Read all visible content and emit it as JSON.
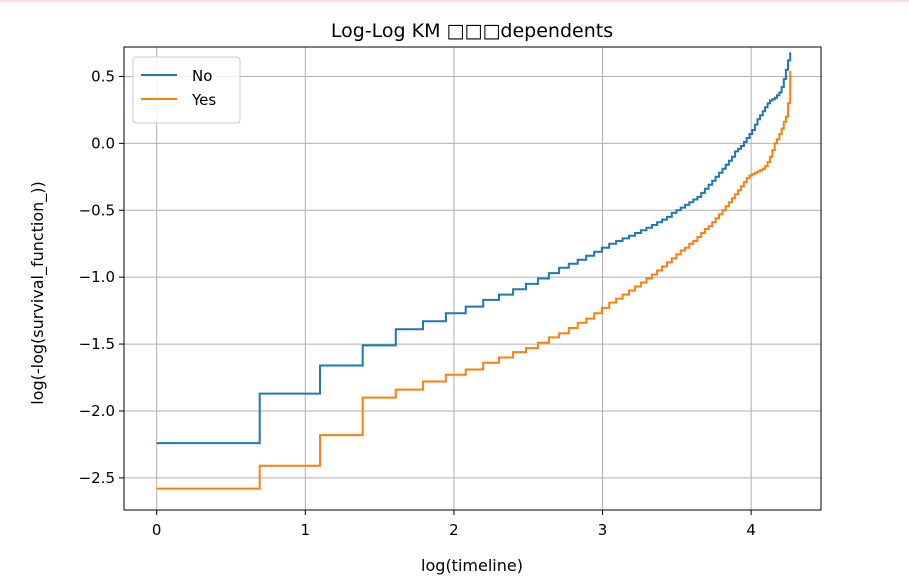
{
  "chart_data": {
    "type": "line",
    "title": "Log-Log KM □□□dependents",
    "xlabel": "log(timeline)",
    "ylabel": "log(-log(survival_function_))",
    "xlim": [
      -0.22,
      4.47
    ],
    "ylim": [
      -2.74,
      0.72
    ],
    "xticks": [
      0,
      1,
      2,
      3,
      4
    ],
    "xtick_labels": [
      "0",
      "1",
      "2",
      "3",
      "4"
    ],
    "yticks": [
      -2.5,
      -2.0,
      -1.5,
      -1.0,
      -0.5,
      0.0,
      0.5
    ],
    "ytick_labels": [
      "−2.5",
      "−2.0",
      "−1.5",
      "−1.0",
      "−0.5",
      "0.0",
      "0.5"
    ],
    "grid": true,
    "legend_position": "top-left",
    "series": [
      {
        "name": "No",
        "color": "#1f77b4",
        "step": "post",
        "x": [
          0.0,
          0.693,
          1.099,
          1.386,
          1.609,
          1.792,
          1.946,
          2.079,
          2.197,
          2.303,
          2.398,
          2.485,
          2.565,
          2.639,
          2.708,
          2.773,
          2.833,
          2.89,
          2.944,
          2.996,
          3.045,
          3.091,
          3.135,
          3.178,
          3.219,
          3.258,
          3.296,
          3.332,
          3.367,
          3.401,
          3.434,
          3.466,
          3.497,
          3.526,
          3.555,
          3.584,
          3.611,
          3.638,
          3.664,
          3.689,
          3.714,
          3.738,
          3.761,
          3.784,
          3.807,
          3.829,
          3.85,
          3.871,
          3.892,
          3.912,
          3.932,
          3.951,
          3.97,
          3.989,
          4.007,
          4.025,
          4.043,
          4.06,
          4.078,
          4.094,
          4.111,
          4.127,
          4.143,
          4.159,
          4.174,
          4.19,
          4.205,
          4.22,
          4.234,
          4.248,
          4.263
        ],
        "y": [
          -2.24,
          -1.87,
          -1.66,
          -1.51,
          -1.39,
          -1.33,
          -1.27,
          -1.22,
          -1.17,
          -1.13,
          -1.09,
          -1.05,
          -1.01,
          -0.97,
          -0.93,
          -0.9,
          -0.87,
          -0.84,
          -0.81,
          -0.78,
          -0.75,
          -0.73,
          -0.71,
          -0.69,
          -0.67,
          -0.65,
          -0.63,
          -0.61,
          -0.59,
          -0.57,
          -0.55,
          -0.52,
          -0.5,
          -0.48,
          -0.46,
          -0.44,
          -0.42,
          -0.4,
          -0.37,
          -0.34,
          -0.31,
          -0.28,
          -0.25,
          -0.22,
          -0.19,
          -0.16,
          -0.13,
          -0.1,
          -0.06,
          -0.04,
          -0.02,
          0.01,
          0.04,
          0.07,
          0.1,
          0.14,
          0.18,
          0.21,
          0.24,
          0.27,
          0.3,
          0.32,
          0.33,
          0.34,
          0.36,
          0.38,
          0.42,
          0.48,
          0.55,
          0.62,
          0.68
        ]
      },
      {
        "name": "Yes",
        "color": "#ff7f0e",
        "step": "post",
        "x": [
          0.0,
          0.693,
          1.099,
          1.386,
          1.609,
          1.792,
          1.946,
          2.079,
          2.197,
          2.303,
          2.398,
          2.485,
          2.565,
          2.639,
          2.708,
          2.773,
          2.833,
          2.89,
          2.944,
          2.996,
          3.045,
          3.091,
          3.135,
          3.178,
          3.219,
          3.258,
          3.296,
          3.332,
          3.367,
          3.401,
          3.434,
          3.466,
          3.497,
          3.526,
          3.555,
          3.584,
          3.611,
          3.638,
          3.664,
          3.689,
          3.714,
          3.738,
          3.761,
          3.784,
          3.807,
          3.829,
          3.85,
          3.871,
          3.892,
          3.912,
          3.932,
          3.951,
          3.97,
          3.989,
          4.007,
          4.025,
          4.043,
          4.06,
          4.078,
          4.094,
          4.111,
          4.127,
          4.143,
          4.159,
          4.174,
          4.19,
          4.205,
          4.22,
          4.234,
          4.248,
          4.263
        ],
        "y": [
          -2.58,
          -2.41,
          -2.18,
          -1.9,
          -1.84,
          -1.78,
          -1.73,
          -1.69,
          -1.64,
          -1.6,
          -1.56,
          -1.53,
          -1.49,
          -1.45,
          -1.42,
          -1.38,
          -1.34,
          -1.31,
          -1.27,
          -1.23,
          -1.19,
          -1.16,
          -1.13,
          -1.1,
          -1.07,
          -1.04,
          -1.01,
          -0.98,
          -0.95,
          -0.92,
          -0.89,
          -0.86,
          -0.83,
          -0.8,
          -0.78,
          -0.75,
          -0.73,
          -0.7,
          -0.67,
          -0.64,
          -0.62,
          -0.59,
          -0.56,
          -0.53,
          -0.5,
          -0.47,
          -0.44,
          -0.41,
          -0.38,
          -0.35,
          -0.32,
          -0.29,
          -0.26,
          -0.24,
          -0.23,
          -0.22,
          -0.21,
          -0.2,
          -0.19,
          -0.17,
          -0.14,
          -0.1,
          -0.05,
          0.0,
          0.03,
          0.07,
          0.11,
          0.16,
          0.2,
          0.3,
          0.54
        ]
      }
    ]
  }
}
